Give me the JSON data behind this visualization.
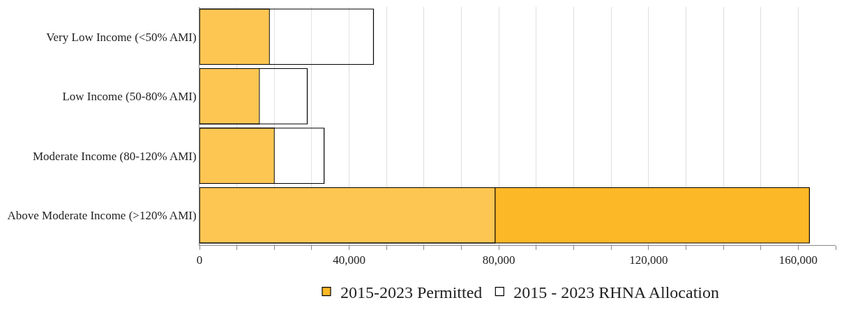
{
  "chart_data": {
    "type": "bar",
    "orientation": "horizontal",
    "categories": [
      "Very Low Income (<50% AMI)",
      "Low Income (50-80% AMI)",
      "Moderate Income (80-120% AMI)",
      "Above Moderate Income (>120% AMI)"
    ],
    "series": [
      {
        "name": "2015-2023 Permitted",
        "color": "#fdb827",
        "values": [
          18700,
          16000,
          20000,
          163000
        ]
      },
      {
        "name": "2015 - 2023 RHNA Allocation",
        "color": "#ffffff",
        "values": [
          46500,
          28800,
          33300,
          79000
        ]
      }
    ],
    "xlim": [
      0,
      170000
    ],
    "xticks": [
      0,
      {
        "value": 10000,
        "label": null
      },
      {
        "value": 20000,
        "label": null
      },
      {
        "value": 30000,
        "label": null
      },
      {
        "value": 40000,
        "label": "40,000"
      },
      {
        "value": 50000,
        "label": null
      },
      {
        "value": 60000,
        "label": null
      },
      {
        "value": 70000,
        "label": null
      },
      {
        "value": 80000,
        "label": "80,000"
      },
      {
        "value": 90000,
        "label": null
      },
      {
        "value": 100000,
        "label": null
      },
      {
        "value": 110000,
        "label": null
      },
      {
        "value": 120000,
        "label": "120,000"
      },
      {
        "value": 130000,
        "label": null
      },
      {
        "value": 140000,
        "label": null
      },
      {
        "value": 150000,
        "label": null
      },
      {
        "value": 160000,
        "label": "160,000"
      },
      {
        "value": 170000,
        "label": null
      }
    ],
    "grid": "x",
    "legend": "bottom"
  }
}
